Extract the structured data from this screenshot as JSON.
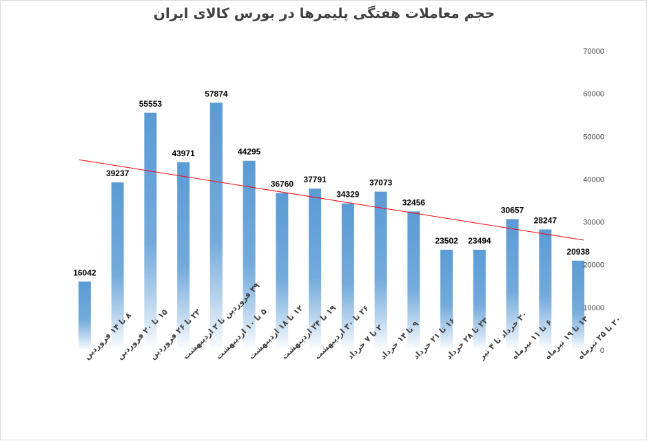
{
  "chart_data": {
    "type": "bar",
    "title": "حجم معاملات هفتگی پلیمرها در بورس کالای ایران",
    "categories": [
      "۸ تا ۱۴ فروردین",
      "۱۵ تا ۲۰ فروردین",
      "۲۲ تا ۲۶ فروردین",
      "۲۹ فروردین تا ۲ اردیبهشت",
      "۵ تا ۱۰ اردیبهشت",
      "۱۲ تا ۱۸ اردیبهشت",
      "۱۹ تا ۲۴ اردیبهشت",
      "۲۶ تا ۳۰ اردیبهشت",
      "۲ تا ۷ خرداد",
      "۹ تا ۱۴ خرداد",
      "۱۶ تا ۲۱ خرداد",
      "۲۳ تا ۲۸ خرداد",
      "۳۰ خرداد تا ۴ تیر",
      "۶ تا ۱۱ تیرماه",
      "۱۳ تا ۱۹ تیرماه",
      "۲۰ تا ۲۵ تیرماه"
    ],
    "values": [
      16042,
      39237,
      55553,
      43971,
      57874,
      44295,
      36760,
      37791,
      34329,
      37073,
      32456,
      23502,
      23494,
      30657,
      28247,
      20938
    ],
    "ylim": [
      0,
      70000
    ],
    "yticks": [
      0,
      10000,
      20000,
      30000,
      40000,
      50000,
      60000,
      70000
    ],
    "y_axis_position": "right",
    "trendline": true,
    "grid": false,
    "legend": "none",
    "colors": {
      "bar_top": "#5b9bd5",
      "bar_bottom": "#ffffff",
      "trend": "#ff0000",
      "label": "#000000",
      "tick": "#404040"
    }
  }
}
